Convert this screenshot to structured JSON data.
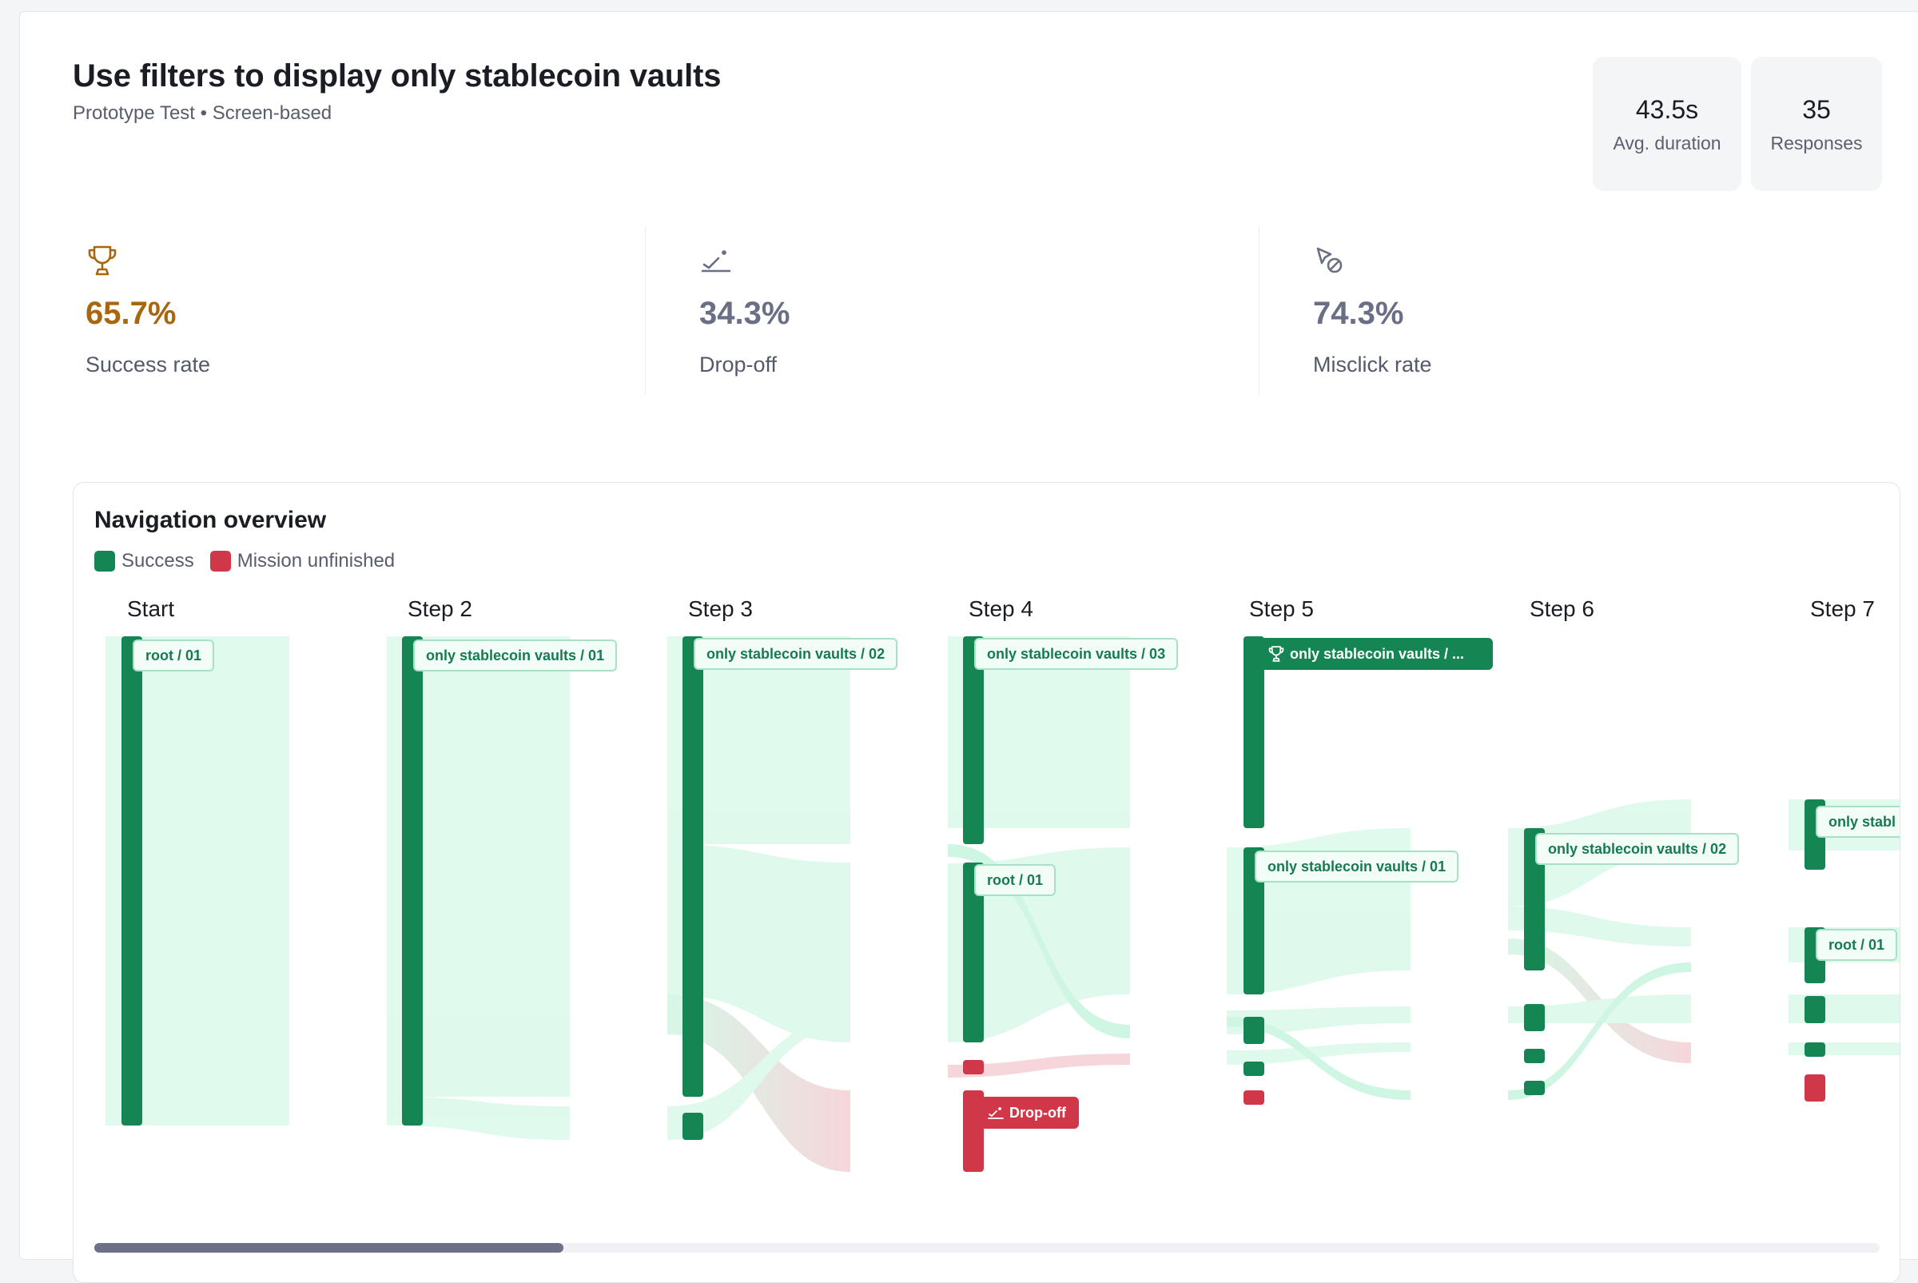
{
  "header": {
    "title": "Use filters to display only stablecoin vaults",
    "subtitle": "Prototype Test • Screen-based",
    "stats": [
      {
        "value": "43.5s",
        "label": "Avg. duration"
      },
      {
        "value": "35",
        "label": "Responses"
      }
    ]
  },
  "metrics": [
    {
      "value": "65.7%",
      "label": "Success rate",
      "icon": "trophy-icon",
      "color": "#a8660f"
    },
    {
      "value": "34.3%",
      "label": "Drop-off",
      "icon": "dropoff-icon",
      "color": "#6a6f86"
    },
    {
      "value": "74.3%",
      "label": "Misclick rate",
      "icon": "misclick-icon",
      "color": "#6a6f86"
    }
  ],
  "navigation": {
    "title": "Navigation overview",
    "legend": [
      {
        "label": "Success",
        "color": "#168554"
      },
      {
        "label": "Mission unfinished",
        "color": "#d0384a"
      }
    ],
    "steps": [
      "Start",
      "Step 2",
      "Step 3",
      "Step 4",
      "Step 5",
      "Step 6",
      "Step 7"
    ],
    "node_labels": {
      "start_root": "root / 01",
      "s2_vaults01": "only stablecoin vaults / 01",
      "s3_vaults02": "only stablecoin vaults / 02",
      "s4_vaults03": "only stablecoin vaults / 03",
      "s4_root": "root / 01",
      "s4_dropoff": "Drop-off",
      "s5_success": "only stablecoin vaults / ...",
      "s5_vaults01": "only stablecoin vaults / 01",
      "s6_vaults02": "only stablecoin vaults / 02",
      "s7_vaults": "only stabl",
      "s7_root": "root / 01"
    },
    "colors": {
      "success": "#168554",
      "unfinished": "#d0384a",
      "flow": "#c9f5e0",
      "flow_red": "#f3c9cf"
    }
  }
}
